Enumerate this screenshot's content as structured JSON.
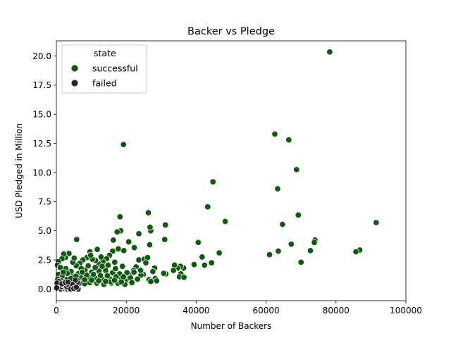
{
  "chart_data": {
    "type": "scatter",
    "title": "Backer vs Pledge",
    "xlabel": "Number of Backers",
    "ylabel": "USD Pledged in Million",
    "xlim": [
      0,
      100000
    ],
    "ylim": [
      -1.0,
      21.3
    ],
    "xticks": [
      0,
      20000,
      40000,
      60000,
      80000,
      100000
    ],
    "xtick_labels": [
      "0",
      "20000",
      "40000",
      "60000",
      "80000",
      "100000"
    ],
    "yticks": [
      0.0,
      2.5,
      5.0,
      7.5,
      10.0,
      12.5,
      15.0,
      17.5,
      20.0
    ],
    "ytick_labels": [
      "0.0",
      "2.5",
      "5.0",
      "7.5",
      "10.0",
      "12.5",
      "15.0",
      "17.5",
      "20.0"
    ],
    "grid": false,
    "legend": {
      "title": "state",
      "placement": "top-left",
      "entries": [
        "successful",
        "failed"
      ]
    },
    "colors": {
      "successful": "#0f5a0f",
      "failed": "#262626",
      "edge": "#ffffff",
      "axes": "#000000"
    },
    "series": [
      {
        "name": "successful",
        "points": [
          [
            78200,
            20.35
          ],
          [
            19200,
            12.4
          ],
          [
            62500,
            13.3
          ],
          [
            66500,
            12.8
          ],
          [
            68700,
            10.25
          ],
          [
            63300,
            8.6
          ],
          [
            44800,
            9.2
          ],
          [
            43300,
            7.05
          ],
          [
            69200,
            6.35
          ],
          [
            26300,
            6.55
          ],
          [
            18200,
            6.2
          ],
          [
            48300,
            5.8
          ],
          [
            91500,
            5.7
          ],
          [
            64700,
            5.55
          ],
          [
            31200,
            5.5
          ],
          [
            27000,
            5.0
          ],
          [
            26800,
            5.3
          ],
          [
            18400,
            5.0
          ],
          [
            17400,
            4.9
          ],
          [
            23600,
            4.75
          ],
          [
            5800,
            4.25
          ],
          [
            16300,
            4.2
          ],
          [
            31000,
            4.25
          ],
          [
            40600,
            4.0
          ],
          [
            20700,
            4.05
          ],
          [
            74000,
            4.2
          ],
          [
            73800,
            4.0
          ],
          [
            67200,
            3.85
          ],
          [
            26700,
            3.8
          ],
          [
            22300,
            3.55
          ],
          [
            86800,
            3.35
          ],
          [
            85700,
            3.2
          ],
          [
            72700,
            3.3
          ],
          [
            63500,
            3.25
          ],
          [
            61000,
            2.95
          ],
          [
            46600,
            3.1
          ],
          [
            41700,
            2.75
          ],
          [
            44400,
            2.25
          ],
          [
            42400,
            2.05
          ],
          [
            70000,
            2.3
          ],
          [
            39400,
            2.1
          ],
          [
            36400,
            1.8
          ],
          [
            35500,
            1.95
          ],
          [
            34700,
            1.8
          ],
          [
            33800,
            2.05
          ],
          [
            33500,
            1.6
          ],
          [
            35600,
            1.3
          ],
          [
            35200,
            1.05
          ],
          [
            36500,
            1.0
          ],
          [
            31300,
            1.3
          ],
          [
            30700,
            1.35
          ],
          [
            28100,
            1.8
          ],
          [
            27600,
            1.5
          ],
          [
            28300,
            0.9
          ],
          [
            28700,
            0.7
          ],
          [
            26500,
            0.8
          ],
          [
            27000,
            0.65
          ],
          [
            24900,
            1.25
          ],
          [
            24200,
            1.2
          ],
          [
            23600,
            2.5
          ],
          [
            25100,
            2.55
          ],
          [
            26100,
            2.7
          ],
          [
            25600,
            2.25
          ],
          [
            22800,
            1.9
          ],
          [
            22100,
            1.6
          ],
          [
            21200,
            1.2
          ],
          [
            20700,
            0.9
          ],
          [
            19700,
            0.7
          ],
          [
            18600,
            0.85
          ],
          [
            17200,
            0.65
          ],
          [
            15700,
            0.5
          ],
          [
            19300,
            3.3
          ],
          [
            17700,
            3.45
          ],
          [
            16100,
            3.25
          ],
          [
            15200,
            2.9
          ],
          [
            14400,
            2.6
          ],
          [
            13300,
            2.35
          ],
          [
            12100,
            2.15
          ],
          [
            11200,
            2.45
          ],
          [
            10300,
            2.55
          ],
          [
            9600,
            3.2
          ],
          [
            8700,
            2.7
          ],
          [
            7600,
            2.5
          ],
          [
            6700,
            2.2
          ],
          [
            5700,
            2.0
          ],
          [
            4700,
            2.3
          ],
          [
            3600,
            3.05
          ],
          [
            2600,
            2.7
          ],
          [
            2100,
            3.0
          ],
          [
            1600,
            2.6
          ],
          [
            600,
            2.35
          ],
          [
            300,
            2.05
          ],
          [
            1100,
            1.85
          ],
          [
            2700,
            1.75
          ],
          [
            4200,
            1.5
          ],
          [
            6200,
            1.3
          ],
          [
            8200,
            1.65
          ],
          [
            10100,
            1.45
          ],
          [
            12200,
            1.55
          ],
          [
            14100,
            1.6
          ],
          [
            16100,
            1.4
          ],
          [
            18100,
            1.3
          ],
          [
            20200,
            1.4
          ],
          [
            22200,
            1.45
          ],
          [
            24100,
            1.6
          ],
          [
            600,
            1.25
          ],
          [
            1700,
            1.05
          ],
          [
            3100,
            0.85
          ],
          [
            4600,
            1.05
          ],
          [
            7100,
            0.95
          ],
          [
            9100,
            1.05
          ],
          [
            11100,
            0.95
          ],
          [
            13100,
            0.85
          ],
          [
            15100,
            0.95
          ],
          [
            17100,
            1.05
          ],
          [
            19200,
            1.05
          ],
          [
            21200,
            0.95
          ],
          [
            23200,
            0.85
          ],
          [
            2100,
            0.55
          ],
          [
            3600,
            0.4
          ],
          [
            5100,
            0.6
          ],
          [
            6600,
            0.5
          ],
          [
            8100,
            0.45
          ],
          [
            9600,
            0.55
          ],
          [
            11600,
            0.5
          ],
          [
            13600,
            0.4
          ],
          [
            15600,
            0.6
          ],
          [
            17600,
            0.5
          ],
          [
            19600,
            0.4
          ],
          [
            21600,
            0.55
          ],
          [
            7100,
            1.75
          ],
          [
            9100,
            2.0
          ],
          [
            11100,
            1.85
          ],
          [
            13100,
            1.95
          ],
          [
            5100,
            2.65
          ],
          [
            12800,
            2.75
          ],
          [
            14800,
            2.05
          ],
          [
            16700,
            2.3
          ],
          [
            18900,
            1.95
          ],
          [
            3100,
            1.35
          ],
          [
            8600,
            1.2
          ],
          [
            10600,
            1.25
          ],
          [
            12600,
            1.15
          ],
          [
            14600,
            1.15
          ],
          [
            16600,
            0.75
          ],
          [
            18600,
            0.6
          ],
          [
            4100,
            0.9
          ],
          [
            6100,
            0.75
          ],
          [
            8100,
            0.8
          ],
          [
            10100,
            0.75
          ],
          [
            12100,
            0.7
          ],
          [
            14100,
            0.65
          ],
          [
            400,
            0.85
          ],
          [
            1400,
            0.7
          ],
          [
            9800,
            2.9
          ],
          [
            11700,
            3.4
          ],
          [
            2000,
            1.45
          ],
          [
            5600,
            1.1
          ],
          [
            7400,
            1.45
          ],
          [
            16900,
            1.75
          ]
        ]
      },
      {
        "name": "failed",
        "points": [
          [
            400,
            0.05
          ],
          [
            900,
            0.1
          ],
          [
            1300,
            0.0
          ],
          [
            1800,
            0.15
          ],
          [
            2300,
            0.05
          ],
          [
            2700,
            0.1
          ],
          [
            3200,
            0.0
          ],
          [
            3700,
            0.05
          ],
          [
            4200,
            0.15
          ],
          [
            4700,
            0.2
          ],
          [
            5100,
            0.3
          ],
          [
            5600,
            0.25
          ],
          [
            6000,
            0.55
          ],
          [
            5400,
            0.75
          ],
          [
            6200,
            0.0
          ],
          [
            500,
            0.3
          ],
          [
            1000,
            0.25
          ],
          [
            1500,
            0.2
          ],
          [
            2000,
            0.35
          ],
          [
            2500,
            0.3
          ],
          [
            3000,
            0.2
          ],
          [
            3500,
            0.35
          ],
          [
            4500,
            0.4
          ],
          [
            700,
            0.65
          ],
          [
            200,
            0.5
          ],
          [
            1600,
            0.45
          ],
          [
            2600,
            0.55
          ],
          [
            3300,
            0.6
          ],
          [
            4100,
            0.0
          ],
          [
            100,
            0.1
          ],
          [
            5000,
            0.05
          ],
          [
            5700,
            0.15
          ]
        ]
      }
    ]
  }
}
